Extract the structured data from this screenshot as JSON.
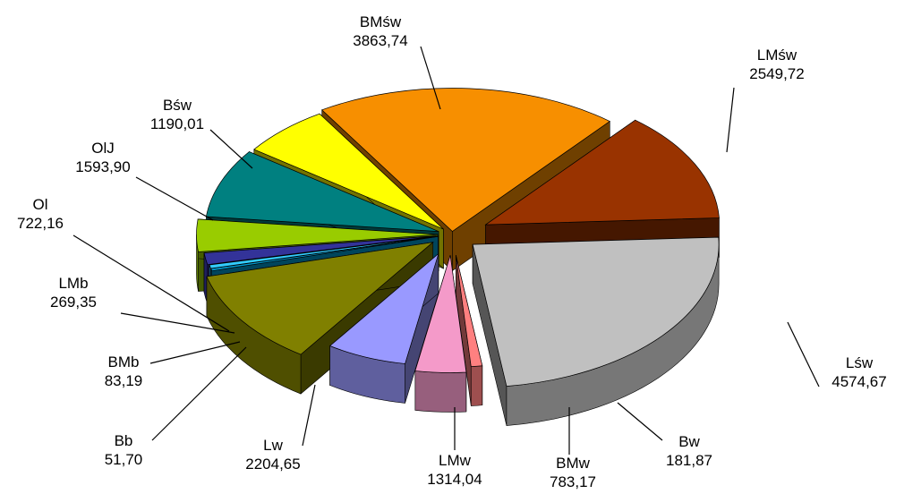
{
  "chart_data": {
    "type": "pie",
    "style": "3d-exploded",
    "title": "",
    "legend": "none",
    "slices": [
      {
        "label": "BMśw",
        "value_text": "3863,74",
        "value": 3863.74,
        "color": "#f78f00"
      },
      {
        "label": "LMśw",
        "value_text": "2549,72",
        "value": 2549.72,
        "color": "#993300"
      },
      {
        "label": "Lśw",
        "value_text": "4574,67",
        "value": 4574.67,
        "color": "#c0c0c0"
      },
      {
        "label": "Bw",
        "value_text": "181,87",
        "value": 181.87,
        "color": "#ff8080"
      },
      {
        "label": "BMw",
        "value_text": "783,17",
        "value": 783.17,
        "color": "#f49ac9"
      },
      {
        "label": "LMw",
        "value_text": "1314,04",
        "value": 1314.04,
        "color": "#9999ff"
      },
      {
        "label": "Lw",
        "value_text": "2204,65",
        "value": 2204.65,
        "color": "#808000"
      },
      {
        "label": "Bb",
        "value_text": "51,70",
        "value": 51.7,
        "color": "#0099cc"
      },
      {
        "label": "BMb",
        "value_text": "83,19",
        "value": 83.19,
        "color": "#33ccff"
      },
      {
        "label": "LMb",
        "value_text": "269,35",
        "value": 269.35,
        "color": "#333399"
      },
      {
        "label": "Ol",
        "value_text": "722,16",
        "value": 722.16,
        "color": "#99cc00"
      },
      {
        "label": "OlJ",
        "value_text": "1593,90",
        "value": 1593.9,
        "color": "#008080"
      },
      {
        "label": "Bśw",
        "value_text": "1190,01",
        "value": 1190.01,
        "color": "#ffff00"
      }
    ]
  }
}
